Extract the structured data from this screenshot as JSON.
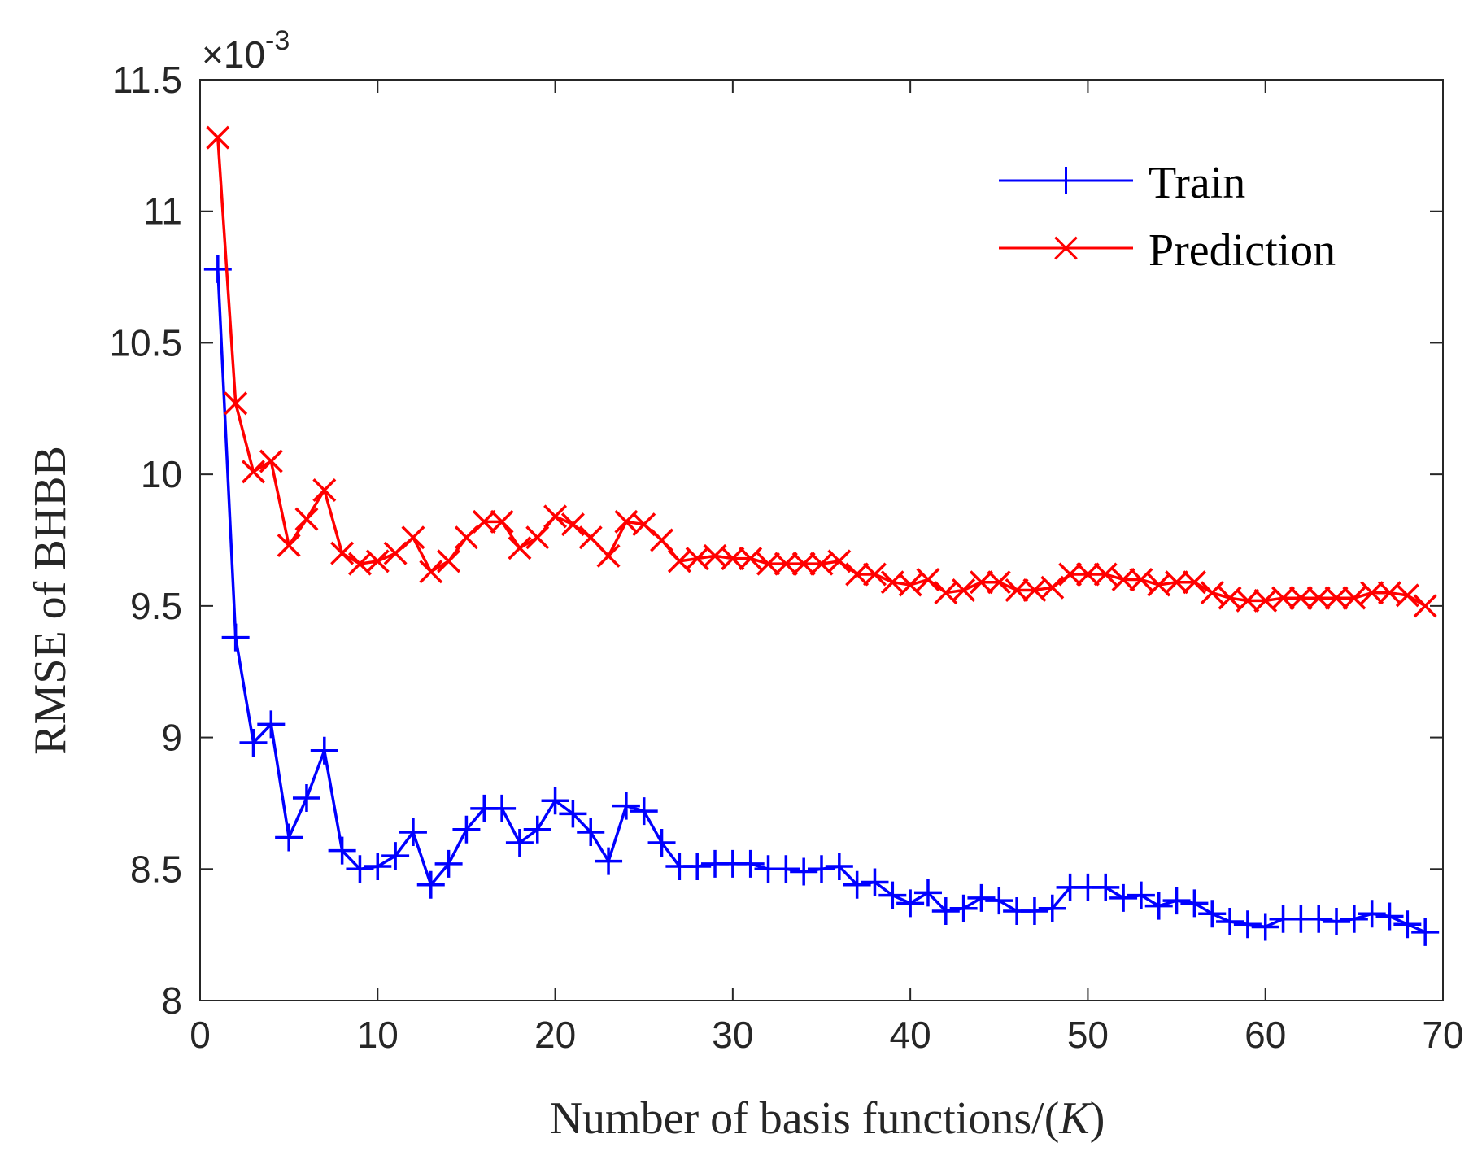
{
  "chart_data": {
    "type": "line",
    "title": "",
    "xlabel_prefix": "Number of basis functions/(",
    "xlabel_italic": "K",
    "xlabel_suffix": ")",
    "ylabel": "RMSE of BHBB",
    "y_multiplier": "×10",
    "y_multiplier_exponent": "-3",
    "xlim": [
      0,
      70
    ],
    "ylim": [
      8,
      11.5
    ],
    "xticks": [
      "0",
      "10",
      "20",
      "30",
      "40",
      "50",
      "60",
      "70"
    ],
    "yticks": [
      "8",
      "8.5",
      "9",
      "9.5",
      "10",
      "10.5",
      "11",
      "11.5"
    ],
    "grid": false,
    "legend_position": "top-right",
    "x": [
      1,
      2,
      3,
      4,
      5,
      6,
      7,
      8,
      9,
      10,
      11,
      12,
      13,
      14,
      15,
      16,
      17,
      18,
      19,
      20,
      21,
      22,
      23,
      24,
      25,
      26,
      27,
      28,
      29,
      30,
      31,
      32,
      33,
      34,
      35,
      36,
      37,
      38,
      39,
      40,
      41,
      42,
      43,
      44,
      45,
      46,
      47,
      48,
      49,
      50,
      51,
      52,
      53,
      54,
      55,
      56,
      57,
      58,
      59,
      60,
      61,
      62,
      63,
      64,
      65,
      66,
      67,
      68,
      69
    ],
    "series": [
      {
        "name": "Train",
        "color": "#0000ff",
        "marker": "plus",
        "values": [
          10.78,
          9.38,
          8.98,
          9.05,
          8.62,
          8.77,
          8.95,
          8.57,
          8.5,
          8.51,
          8.55,
          8.64,
          8.44,
          8.52,
          8.65,
          8.73,
          8.73,
          8.6,
          8.65,
          8.76,
          8.71,
          8.64,
          8.53,
          8.74,
          8.72,
          8.6,
          8.51,
          8.51,
          8.52,
          8.52,
          8.52,
          8.5,
          8.5,
          8.49,
          8.5,
          8.51,
          8.44,
          8.45,
          8.4,
          8.37,
          8.41,
          8.34,
          8.35,
          8.39,
          8.38,
          8.34,
          8.34,
          8.35,
          8.43,
          8.43,
          8.43,
          8.39,
          8.4,
          8.36,
          8.38,
          8.37,
          8.33,
          8.3,
          8.29,
          8.28,
          8.31,
          8.31,
          8.31,
          8.3,
          8.31,
          8.33,
          8.32,
          8.29,
          8.26
        ]
      },
      {
        "name": "Prediction",
        "color": "#ff0000",
        "marker": "x",
        "values": [
          11.28,
          10.27,
          10.01,
          10.05,
          9.73,
          9.83,
          9.94,
          9.7,
          9.66,
          9.67,
          9.7,
          9.76,
          9.63,
          9.67,
          9.76,
          9.82,
          9.82,
          9.72,
          9.76,
          9.84,
          9.81,
          9.76,
          9.69,
          9.82,
          9.81,
          9.75,
          9.67,
          9.68,
          9.69,
          9.68,
          9.68,
          9.66,
          9.66,
          9.66,
          9.66,
          9.67,
          9.62,
          9.62,
          9.59,
          9.58,
          9.6,
          9.55,
          9.56,
          9.59,
          9.59,
          9.56,
          9.56,
          9.57,
          9.62,
          9.62,
          9.62,
          9.6,
          9.6,
          9.58,
          9.59,
          9.59,
          9.55,
          9.53,
          9.52,
          9.52,
          9.53,
          9.53,
          9.53,
          9.53,
          9.53,
          9.55,
          9.55,
          9.54,
          9.5
        ]
      }
    ]
  }
}
